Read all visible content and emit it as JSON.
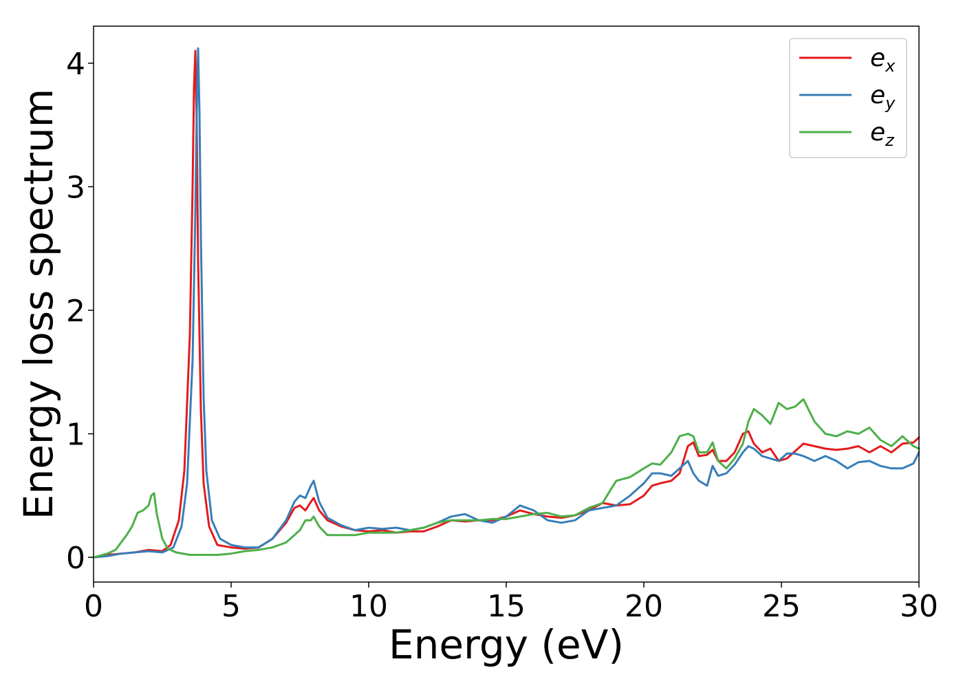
{
  "chart_data": {
    "type": "line",
    "title": "",
    "xlabel": "Energy (eV)",
    "ylabel": "Energy loss spectrum",
    "xlim": [
      0,
      30
    ],
    "ylim": [
      -0.2,
      4.3
    ],
    "xticks": [
      0,
      5,
      10,
      15,
      20,
      25,
      30
    ],
    "yticks": [
      0,
      1,
      2,
      3,
      4
    ],
    "grid": false,
    "legend_position": "top-right",
    "series": [
      {
        "name": "e_x",
        "label_base": "e",
        "label_sub": "x",
        "color": "#e41a1c",
        "x": [
          0,
          0.5,
          1,
          1.5,
          2,
          2.5,
          2.8,
          3.1,
          3.3,
          3.5,
          3.6,
          3.65,
          3.7,
          3.75,
          3.8,
          3.9,
          4,
          4.2,
          4.5,
          5,
          5.5,
          6,
          6.5,
          7,
          7.3,
          7.5,
          7.7,
          7.9,
          8,
          8.2,
          8.5,
          9,
          9.5,
          10,
          10.5,
          11,
          11.5,
          12,
          12.5,
          13,
          13.5,
          14,
          14.5,
          15,
          15.5,
          16,
          16.5,
          17,
          17.5,
          18,
          18.5,
          19,
          19.5,
          20,
          20.3,
          20.6,
          21,
          21.3,
          21.6,
          21.8,
          22,
          22.3,
          22.5,
          22.7,
          23,
          23.3,
          23.6,
          23.8,
          24,
          24.3,
          24.6,
          24.9,
          25.2,
          25.5,
          25.8,
          26.2,
          26.6,
          27,
          27.4,
          27.8,
          28.2,
          28.6,
          29,
          29.4,
          29.8,
          30
        ],
        "y": [
          0,
          0.02,
          0.03,
          0.04,
          0.06,
          0.05,
          0.1,
          0.3,
          0.7,
          1.8,
          3.0,
          3.8,
          4.1,
          3.5,
          2.4,
          1.2,
          0.6,
          0.25,
          0.1,
          0.08,
          0.07,
          0.08,
          0.15,
          0.28,
          0.4,
          0.42,
          0.38,
          0.45,
          0.48,
          0.38,
          0.3,
          0.25,
          0.22,
          0.21,
          0.22,
          0.2,
          0.21,
          0.21,
          0.25,
          0.3,
          0.29,
          0.3,
          0.3,
          0.33,
          0.38,
          0.35,
          0.33,
          0.32,
          0.34,
          0.38,
          0.44,
          0.42,
          0.43,
          0.5,
          0.58,
          0.6,
          0.62,
          0.68,
          0.9,
          0.93,
          0.82,
          0.83,
          0.87,
          0.78,
          0.78,
          0.85,
          1.0,
          1.02,
          0.92,
          0.85,
          0.88,
          0.78,
          0.8,
          0.86,
          0.92,
          0.9,
          0.88,
          0.87,
          0.88,
          0.9,
          0.85,
          0.9,
          0.85,
          0.92,
          0.93,
          0.97
        ]
      },
      {
        "name": "e_y",
        "label_base": "e",
        "label_sub": "y",
        "color": "#377eb8",
        "x": [
          0,
          0.5,
          1,
          1.5,
          2,
          2.5,
          2.9,
          3.2,
          3.4,
          3.6,
          3.7,
          3.75,
          3.8,
          3.85,
          3.9,
          4,
          4.1,
          4.3,
          4.6,
          5,
          5.5,
          6,
          6.5,
          7,
          7.3,
          7.5,
          7.7,
          7.9,
          8,
          8.2,
          8.5,
          9,
          9.5,
          10,
          10.5,
          11,
          11.5,
          12,
          12.5,
          13,
          13.5,
          14,
          14.5,
          15,
          15.5,
          16,
          16.5,
          17,
          17.5,
          18,
          18.5,
          19,
          19.5,
          20,
          20.3,
          20.6,
          21,
          21.3,
          21.6,
          21.8,
          22,
          22.3,
          22.5,
          22.7,
          23,
          23.3,
          23.6,
          23.8,
          24,
          24.3,
          24.6,
          24.9,
          25.2,
          25.5,
          25.8,
          26.2,
          26.6,
          27,
          27.4,
          27.8,
          28.2,
          28.6,
          29,
          29.4,
          29.8,
          30
        ],
        "y": [
          0,
          0.01,
          0.03,
          0.04,
          0.05,
          0.04,
          0.08,
          0.25,
          0.6,
          1.6,
          2.8,
          3.6,
          4.12,
          3.6,
          2.6,
          1.3,
          0.7,
          0.3,
          0.15,
          0.1,
          0.08,
          0.08,
          0.15,
          0.3,
          0.45,
          0.5,
          0.48,
          0.58,
          0.62,
          0.45,
          0.32,
          0.26,
          0.22,
          0.24,
          0.23,
          0.24,
          0.22,
          0.24,
          0.28,
          0.33,
          0.35,
          0.3,
          0.28,
          0.33,
          0.42,
          0.38,
          0.3,
          0.28,
          0.3,
          0.38,
          0.4,
          0.42,
          0.5,
          0.6,
          0.68,
          0.68,
          0.66,
          0.72,
          0.78,
          0.68,
          0.62,
          0.58,
          0.74,
          0.66,
          0.68,
          0.75,
          0.85,
          0.9,
          0.88,
          0.82,
          0.8,
          0.78,
          0.84,
          0.84,
          0.82,
          0.78,
          0.82,
          0.78,
          0.72,
          0.77,
          0.78,
          0.74,
          0.72,
          0.72,
          0.76,
          0.85
        ]
      },
      {
        "name": "e_z",
        "label_base": "e",
        "label_sub": "z",
        "color": "#4daf4a",
        "x": [
          0,
          0.5,
          0.8,
          1,
          1.2,
          1.4,
          1.6,
          1.8,
          2,
          2.1,
          2.2,
          2.3,
          2.5,
          2.7,
          3,
          3.5,
          4,
          4.5,
          5,
          5.5,
          6,
          6.5,
          7,
          7.3,
          7.5,
          7.7,
          7.9,
          8,
          8.2,
          8.5,
          9,
          9.5,
          10,
          10.5,
          11,
          11.5,
          12,
          12.5,
          13,
          13.5,
          14,
          14.5,
          15,
          15.5,
          16,
          16.5,
          17,
          17.5,
          18,
          18.5,
          18.8,
          19,
          19.5,
          20,
          20.3,
          20.6,
          21,
          21.3,
          21.6,
          21.8,
          22,
          22.3,
          22.5,
          22.7,
          23,
          23.3,
          23.6,
          23.8,
          24,
          24.3,
          24.6,
          24.9,
          25.2,
          25.5,
          25.8,
          26.2,
          26.6,
          27,
          27.4,
          27.8,
          28.2,
          28.6,
          29,
          29.4,
          29.8,
          30
        ],
        "y": [
          0,
          0.03,
          0.06,
          0.12,
          0.18,
          0.25,
          0.36,
          0.38,
          0.42,
          0.5,
          0.52,
          0.35,
          0.15,
          0.07,
          0.04,
          0.02,
          0.02,
          0.02,
          0.03,
          0.05,
          0.06,
          0.08,
          0.12,
          0.18,
          0.22,
          0.3,
          0.3,
          0.33,
          0.25,
          0.18,
          0.18,
          0.18,
          0.2,
          0.2,
          0.2,
          0.22,
          0.24,
          0.28,
          0.3,
          0.3,
          0.3,
          0.31,
          0.31,
          0.33,
          0.35,
          0.36,
          0.33,
          0.34,
          0.4,
          0.44,
          0.55,
          0.62,
          0.65,
          0.72,
          0.76,
          0.75,
          0.85,
          0.98,
          1.0,
          0.98,
          0.85,
          0.85,
          0.93,
          0.78,
          0.72,
          0.8,
          0.92,
          1.1,
          1.2,
          1.15,
          1.08,
          1.25,
          1.2,
          1.22,
          1.28,
          1.1,
          1.0,
          0.98,
          1.02,
          1.0,
          1.05,
          0.95,
          0.9,
          0.98,
          0.9,
          0.88
        ]
      }
    ]
  }
}
